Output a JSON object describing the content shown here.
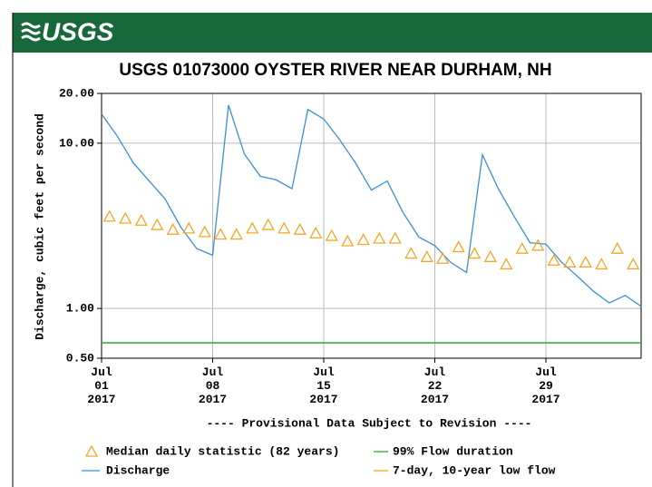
{
  "header": {
    "logo": "USGS"
  },
  "chart_data": {
    "type": "line",
    "title": "USGS 01073000 OYSTER RIVER NEAR DURHAM, NH",
    "ylabel": "Discharge, cubic feet per second",
    "log_y": true,
    "ylim": [
      0.5,
      20
    ],
    "yticks": [
      {
        "value": 0.5,
        "label": "0.50"
      },
      {
        "value": 1,
        "label": "1.00"
      },
      {
        "value": 10,
        "label": "10.00"
      },
      {
        "value": 20,
        "label": "20.00"
      }
    ],
    "xlim": [
      "2017-07-01",
      "2017-08-04"
    ],
    "xticks": [
      {
        "value": "2017-07-01",
        "label": "Jul 01 2017"
      },
      {
        "value": "2017-07-08",
        "label": "Jul 08 2017"
      },
      {
        "value": "2017-07-15",
        "label": "Jul 15 2017"
      },
      {
        "value": "2017-07-22",
        "label": "Jul 22 2017"
      },
      {
        "value": "2017-07-29",
        "label": "Jul 29 2017"
      }
    ],
    "grid": true,
    "series": [
      {
        "name": "Discharge",
        "color": "#3b8fd6",
        "x": [
          "2017-07-01",
          "2017-07-02",
          "2017-07-03",
          "2017-07-04",
          "2017-07-05",
          "2017-07-06",
          "2017-07-07",
          "2017-07-08",
          "2017-07-09",
          "2017-07-10",
          "2017-07-11",
          "2017-07-12",
          "2017-07-13",
          "2017-07-14",
          "2017-07-15",
          "2017-07-16",
          "2017-07-17",
          "2017-07-18",
          "2017-07-19",
          "2017-07-20",
          "2017-07-21",
          "2017-07-22",
          "2017-07-23",
          "2017-07-24",
          "2017-07-25",
          "2017-07-26",
          "2017-07-27",
          "2017-07-28",
          "2017-07-29",
          "2017-07-30",
          "2017-07-31",
          "2017-08-01",
          "2017-08-02",
          "2017-08-03",
          "2017-08-04"
        ],
        "values": [
          15,
          11,
          7.6,
          5.9,
          4.6,
          3.1,
          2.3,
          2.1,
          17,
          8.6,
          6.3,
          6.0,
          5.3,
          16,
          14,
          10.5,
          7.6,
          5.2,
          5.9,
          3.8,
          2.7,
          2.4,
          1.9,
          1.65,
          8.5,
          5.3,
          3.6,
          2.5,
          2.45,
          1.9,
          1.56,
          1.27,
          1.08,
          1.2,
          1.03
        ]
      },
      {
        "name": "Median daily statistic (82 years)",
        "color": "#f5a623",
        "marker": "triangle",
        "x": [
          "2017-07-01",
          "2017-07-02",
          "2017-07-03",
          "2017-07-04",
          "2017-07-05",
          "2017-07-06",
          "2017-07-07",
          "2017-07-08",
          "2017-07-09",
          "2017-07-10",
          "2017-07-11",
          "2017-07-12",
          "2017-07-13",
          "2017-07-14",
          "2017-07-15",
          "2017-07-16",
          "2017-07-17",
          "2017-07-18",
          "2017-07-19",
          "2017-07-20",
          "2017-07-21",
          "2017-07-22",
          "2017-07-23",
          "2017-07-24",
          "2017-07-25",
          "2017-07-26",
          "2017-07-27",
          "2017-07-28",
          "2017-07-29",
          "2017-07-30",
          "2017-07-31",
          "2017-08-01",
          "2017-08-02",
          "2017-08-03"
        ],
        "values": [
          3.6,
          3.5,
          3.4,
          3.2,
          3.0,
          3.05,
          2.9,
          2.8,
          2.8,
          3.05,
          3.2,
          3.05,
          3.0,
          2.85,
          2.75,
          2.55,
          2.6,
          2.65,
          2.65,
          2.15,
          2.05,
          2.0,
          2.35,
          2.15,
          2.05,
          1.85,
          2.3,
          2.4,
          1.95,
          1.9,
          1.9,
          1.85,
          2.3,
          1.85
        ]
      }
    ],
    "hlines": [
      {
        "name": "99% Flow duration",
        "color": "#2eaa2e",
        "value": 0.62
      },
      {
        "name": "7-day, 10-year low flow",
        "color": "#f5a623"
      }
    ],
    "note": "---- Provisional Data Subject to Revision ----",
    "note_color": "#e8141b"
  }
}
